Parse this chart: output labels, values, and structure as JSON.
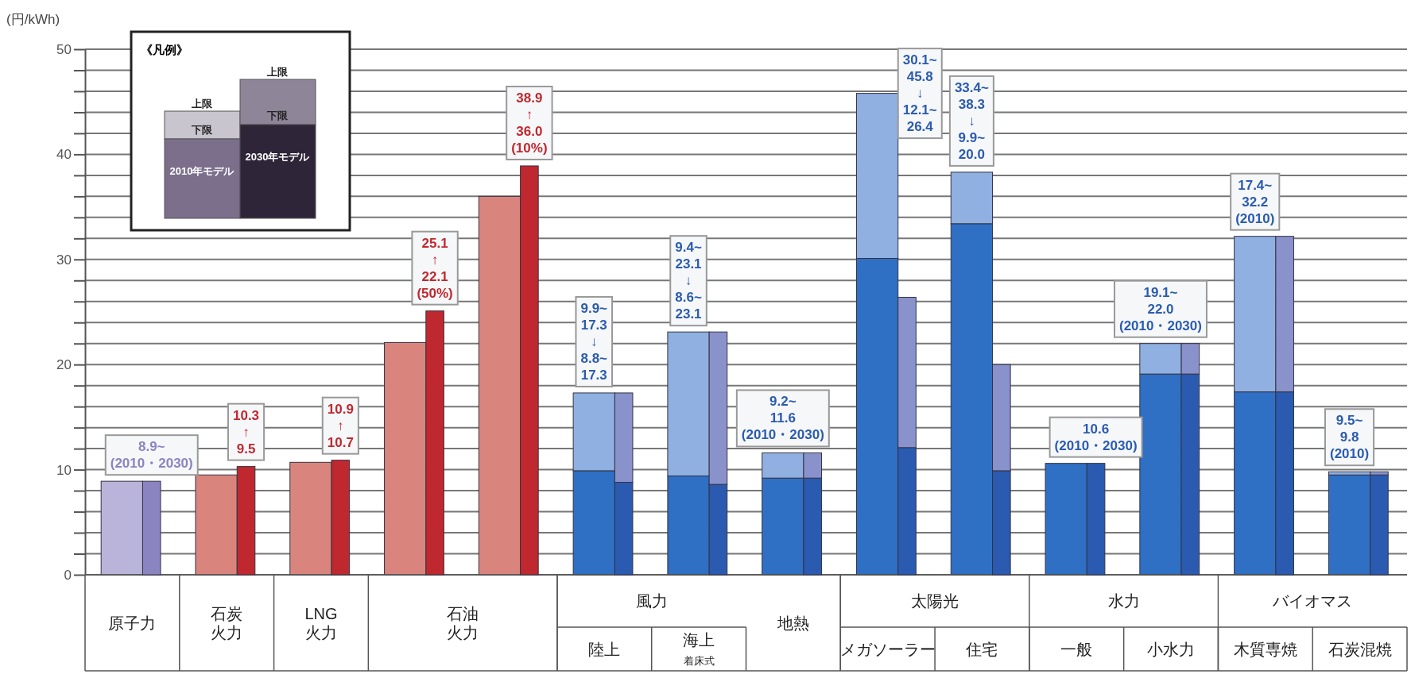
{
  "chart_data": [
    {
      "type": "bar",
      "stacked": true,
      "ylabel": "(円/kWh)",
      "legend_title": "《凡例》",
      "grid": "y",
      "ylim": [
        0,
        50
      ],
      "yticks": [
        0,
        {
          "value": 2,
          "label": null
        },
        {
          "value": 4,
          "label": null
        },
        {
          "value": 6,
          "label": null
        },
        {
          "value": 8,
          "label": null
        },
        10,
        {
          "value": 12,
          "label": null
        },
        {
          "value": 14,
          "label": null
        },
        {
          "value": 16,
          "label": null
        },
        {
          "value": 18,
          "label": null
        },
        20,
        {
          "value": 22,
          "label": null
        },
        {
          "value": 24,
          "label": null
        },
        {
          "value": 26,
          "label": null
        },
        {
          "value": 28,
          "label": null
        },
        30,
        {
          "value": 32,
          "label": null
        },
        {
          "value": 34,
          "label": null
        },
        {
          "value": 36,
          "label": null
        },
        {
          "value": 38,
          "label": null
        },
        40,
        {
          "value": 42,
          "label": null
        },
        {
          "value": 44,
          "label": null
        },
        {
          "value": 46,
          "label": null
        },
        {
          "value": 48,
          "label": null
        },
        50
      ],
      "categories": [
        "原子力",
        "石炭火力",
        "LNG火力",
        "石油火力",
        null,
        "陸上",
        "海上着床式",
        "地熱",
        "メガソーラー",
        "住宅",
        "一般",
        "小水力",
        "木質専焼",
        "石炭混焼"
      ],
      "annotations": [
        "風力",
        "太陽光",
        "水力",
        "バイオマス",
        "上限",
        "下限",
        "2010年モデル",
        "上限",
        "下限",
        "2030年モデル",
        {
          "text": "9.9~\n17.3\n↓\n8.8~\n17.3",
          "x": "陸上",
          "y": 17.3
        },
        {
          "text": "9.4~\n23.1\n↓\n8.6~\n23.1",
          "x": "海上着床式",
          "y": 23.1
        },
        {
          "text": "9.2~\n11.6\n(2010・2030)",
          "x": "地熱",
          "y": 11.6
        },
        {
          "text": "30.1~\n45.8\n↓\n12.1~\n26.4",
          "x": "メガソーラー",
          "y": 45.8
        },
        {
          "text": "33.4~\n38.3\n↓\n9.9~\n20.0",
          "x": "住宅",
          "y": 38.3
        },
        {
          "text": "19.1~\n22.0\n(2010・2030)",
          "x": "小水力",
          "y": 22.0
        },
        {
          "text": "17.4~\n32.2\n(2010)",
          "x": "木質専焼",
          "y": 32.2
        },
        {
          "text": "9.5~\n9.8\n(2010)",
          "x": "石炭混焼",
          "y": 9.8
        }
      ],
      "series": [
        {
          "colors": [
            "#bab4da",
            "#d9857d",
            "#d9857d",
            "#d9857d",
            "#d9857d",
            "#2f6fc4",
            "#2f6fc4",
            "#2f6fc4",
            "#2f6fc4",
            "#2f6fc4",
            "#2f6fc4",
            "#2f6fc4",
            "#2f6fc4",
            "#2f6fc4"
          ],
          "values": [
            8.9,
            9.5,
            10.7,
            22.1,
            36.0,
            9.9,
            9.4,
            9.2,
            30.1,
            33.4,
            10.6,
            19.1,
            17.4,
            9.5
          ]
        },
        {
          "colors": [
            null,
            null,
            null,
            null,
            null,
            "#8fb0e0",
            "#8fb0e0",
            "#8fb0e0",
            "#8fb0e0",
            "#8fb0e0",
            null,
            "#8fb0e0",
            "#8fb0e0",
            "#8fb0e0"
          ],
          "values": [
            null,
            null,
            null,
            null,
            null,
            7.4,
            13.7,
            2.4,
            15.7,
            4.9,
            null,
            2.9,
            14.8,
            0.3
          ]
        }
      ]
    },
    {
      "type": "bar",
      "stacked": true,
      "ylim": [
        0,
        50
      ],
      "categories": [
        null,
        null,
        null,
        null,
        null,
        null,
        null,
        null,
        null,
        null,
        null,
        null,
        null,
        null
      ],
      "series": [
        {
          "colors": [
            "#8a84c0",
            "#c0282f",
            "#c0282f",
            "#c0282f",
            "#c0282f",
            "#2a5bb0",
            "#2a5bb0",
            "#2a5bb0",
            "#2a5bb0",
            "#2a5bb0",
            "#2a5bb0",
            "#2a5bb0",
            "#2a5bb0",
            "#2a5bb0"
          ],
          "values": [
            8.9,
            10.3,
            10.9,
            25.1,
            38.9,
            8.8,
            8.6,
            9.2,
            12.1,
            9.9,
            10.6,
            19.1,
            17.4,
            9.5
          ],
          "value_labels": [
            "8.9~\n(2010・2030)",
            "10.3\n↑\n9.5",
            "10.9\n↑\n10.7",
            "25.1\n↑\n22.1\n(50%)",
            "38.9\n↑\n36.0\n(10%)",
            null,
            null,
            null,
            null,
            null,
            "10.6\n(2010・2030)",
            null,
            null,
            null
          ]
        },
        {
          "colors": [
            null,
            null,
            null,
            null,
            null,
            "#8a92cc",
            "#8a92cc",
            "#8a92cc",
            "#8a92cc",
            "#8a92cc",
            null,
            "#8a92cc",
            "#8a92cc",
            "#8a92cc"
          ],
          "values": [
            null,
            null,
            null,
            null,
            null,
            8.5,
            14.5,
            2.4,
            14.3,
            10.1,
            null,
            2.9,
            14.8,
            0.3
          ]
        }
      ]
    }
  ]
}
